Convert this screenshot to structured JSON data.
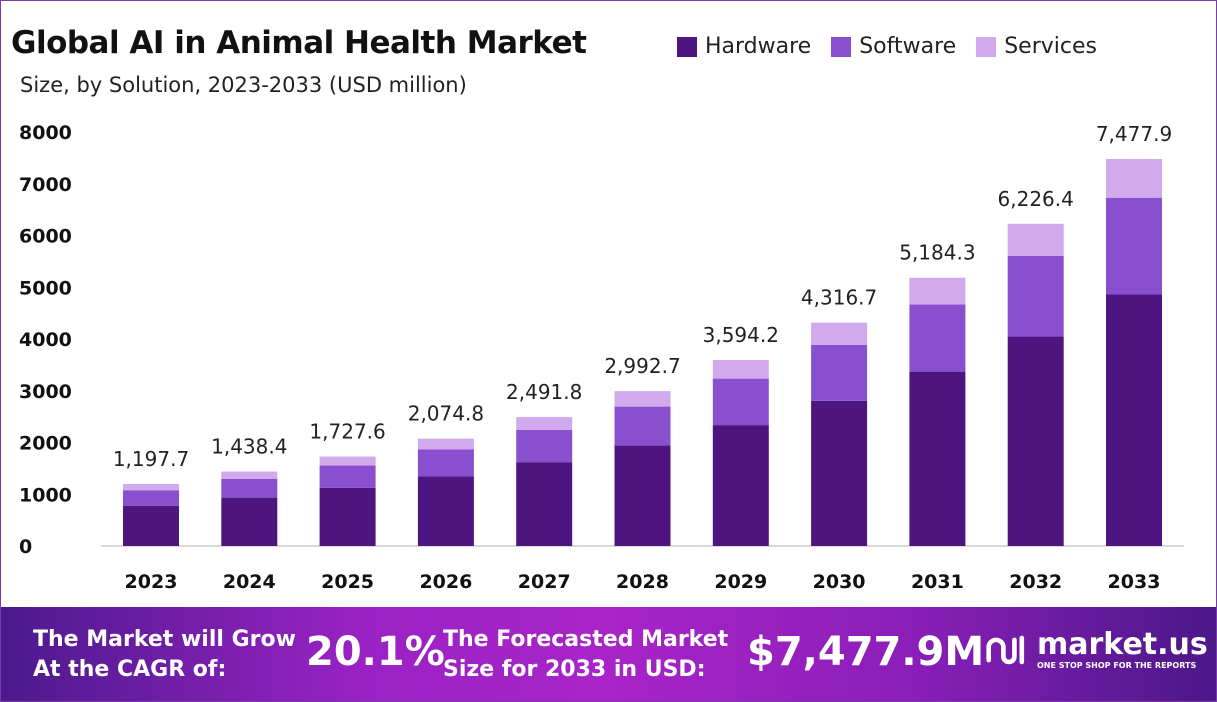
{
  "chart_data": {
    "type": "bar",
    "stacked": true,
    "title": "Global AI in Animal Health Market",
    "subtitle": "Size, by Solution, 2023-2033 (USD million)",
    "xlabel": "",
    "ylabel": "",
    "ylim": [
      0,
      8000
    ],
    "yticks": [
      "0",
      "1000",
      "2000",
      "3000",
      "4000",
      "5000",
      "6000",
      "7000",
      "8000"
    ],
    "categories": [
      "2023",
      "2024",
      "2025",
      "2026",
      "2027",
      "2028",
      "2029",
      "2030",
      "2031",
      "2032",
      "2033"
    ],
    "series": [
      {
        "name": "Hardware",
        "color": "#4e1580",
        "values": [
          778.5,
          935.0,
          1122.9,
          1348.6,
          1619.7,
          1945.3,
          2336.2,
          2805.9,
          3369.8,
          4047.2,
          4860.6
        ]
      },
      {
        "name": "Software",
        "color": "#8a4fcf",
        "values": [
          299.4,
          359.6,
          431.9,
          518.7,
          623.0,
          748.2,
          898.6,
          1079.2,
          1296.1,
          1556.6,
          1869.5
        ]
      },
      {
        "name": "Services",
        "color": "#d3a9ee",
        "values": [
          119.8,
          143.8,
          172.8,
          207.5,
          249.1,
          299.2,
          359.4,
          431.6,
          518.4,
          622.6,
          747.8
        ]
      }
    ],
    "totals": [
      1197.7,
      1438.4,
      1727.6,
      2074.8,
      2491.8,
      2992.7,
      3594.2,
      4316.7,
      5184.3,
      6226.4,
      7477.9
    ],
    "total_labels": [
      "1,197.7",
      "1,438.4",
      "1,727.6",
      "2,074.8",
      "2,491.8",
      "2,992.7",
      "3,594.2",
      "4,316.7",
      "5,184.3",
      "6,226.4",
      "7,477.9"
    ],
    "legend_position": "top-right",
    "grid": false
  },
  "footer": {
    "cagr_label_1": "The Market will Grow",
    "cagr_label_2": "At the CAGR of:",
    "cagr_value": "20.1%",
    "forecast_label_1": "The Forecasted Market",
    "forecast_label_2": "Size for 2033 in USD:",
    "forecast_value": "$7,477.9M",
    "brand": "market.us",
    "brand_tagline": "ONE STOP SHOP FOR THE REPORTS"
  }
}
